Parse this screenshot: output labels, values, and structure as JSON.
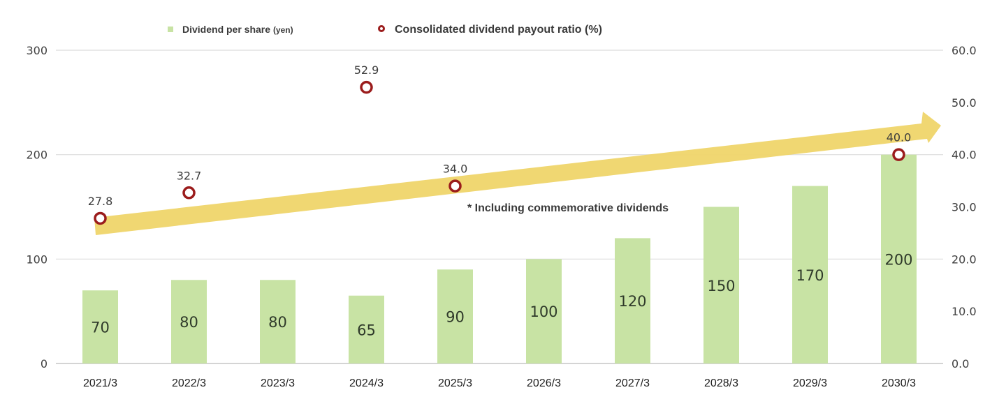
{
  "chart_data": {
    "type": "bar",
    "title": "",
    "categories": [
      "2021/3",
      "2022/3",
      "2023/3",
      "2024/3",
      "2025/3",
      "2026/3",
      "2027/3",
      "2028/3",
      "2029/3",
      "2030/3"
    ],
    "series": [
      {
        "name": "Dividend per share (yen)",
        "type": "bar",
        "axis": "left",
        "color": "#c8e3a4",
        "values": [
          70,
          80,
          80,
          65,
          90,
          100,
          120,
          150,
          170,
          200
        ],
        "labels": [
          "70",
          "80",
          "80",
          "65",
          "90",
          "100",
          "120",
          "150",
          "170",
          "200"
        ]
      },
      {
        "name": "Consolidated dividend payout ratio (%)",
        "type": "scatter",
        "axis": "right",
        "color": "#9b1c1c",
        "points": [
          {
            "category": "2021/3",
            "value": 27.8,
            "label": "27.8"
          },
          {
            "category": "2022/3",
            "value": 32.7,
            "label": "32.7"
          },
          {
            "category": "2024/3",
            "value": 52.9,
            "label": "52.9"
          },
          {
            "category": "2025/3",
            "value": 34.0,
            "label": "34.0"
          },
          {
            "category": "2030/3",
            "value": 40.0,
            "label": "40.0"
          }
        ]
      }
    ],
    "left_axis": {
      "ylim": [
        0,
        300
      ],
      "ticks": [
        "0",
        "100",
        "200",
        "300"
      ]
    },
    "right_axis": {
      "ylim": [
        0,
        60
      ],
      "ticks": [
        "0.0",
        "10.0",
        "20.0",
        "30.0",
        "40.0",
        "50.0",
        "60.0"
      ]
    },
    "xlabel": "",
    "ylabel": "",
    "grid": true,
    "legend": {
      "placement": "top-left",
      "items": [
        {
          "label_main": "Dividend per share",
          "label_unit": "(yen)",
          "marker": "square",
          "color": "#c8e3a4"
        },
        {
          "label_main": "Consolidated dividend payout ratio (%)",
          "label_unit": "",
          "marker": "ring",
          "color": "#9b1c1c"
        }
      ]
    },
    "annotations": [
      {
        "type": "note",
        "text": "* Including commemorative dividends"
      },
      {
        "type": "trend-arrow",
        "description": "upward trend arrow",
        "color": "#efd56a"
      }
    ]
  }
}
